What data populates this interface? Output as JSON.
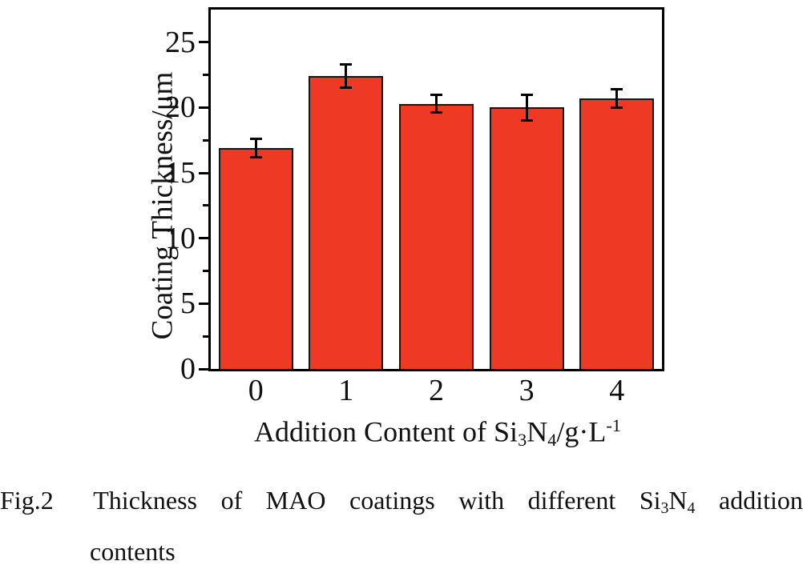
{
  "figure": {
    "caption": {
      "line1_words": [
        [
          {
            "t": "Fig.2"
          }
        ],
        [
          {
            "t": "Thickness"
          }
        ],
        [
          {
            "t": "of"
          }
        ],
        [
          {
            "t": "MAO"
          }
        ],
        [
          {
            "t": "coatings"
          }
        ],
        [
          {
            "t": "with"
          }
        ],
        [
          {
            "t": "different"
          }
        ],
        [
          {
            "t": "Si"
          },
          {
            "t": "3",
            "s": "sub"
          },
          {
            "t": "N"
          },
          {
            "t": "4",
            "s": "sub"
          }
        ],
        [
          {
            "t": "addition"
          }
        ]
      ],
      "line2": "contents"
    }
  },
  "chart_data": {
    "type": "bar",
    "title": "",
    "categories": [
      "0",
      "1",
      "2",
      "3",
      "4"
    ],
    "values": [
      16.9,
      22.4,
      20.3,
      20.0,
      20.7
    ],
    "errors": [
      0.7,
      0.9,
      0.7,
      1.0,
      0.7
    ],
    "ylabel": "Coating Thickness/μm",
    "xlabel_parts": [
      {
        "t": "Addition Content of Si"
      },
      {
        "t": "3",
        "s": "sub"
      },
      {
        "t": "N"
      },
      {
        "t": "4",
        "s": "sub"
      },
      {
        "t": "/g·L"
      },
      {
        "t": "-1",
        "s": "sup"
      }
    ],
    "ylim": [
      0,
      27.5
    ],
    "yticks_major": [
      0,
      5,
      10,
      15,
      20,
      25
    ],
    "yticks_minor": [
      2.5,
      7.5,
      12.5,
      17.5,
      22.5
    ],
    "grid": false,
    "legend": null,
    "bar_color": "#ee3a24",
    "bar_edge_color": "#20130b",
    "error_color": "#000000",
    "frame_color": "#000000"
  }
}
